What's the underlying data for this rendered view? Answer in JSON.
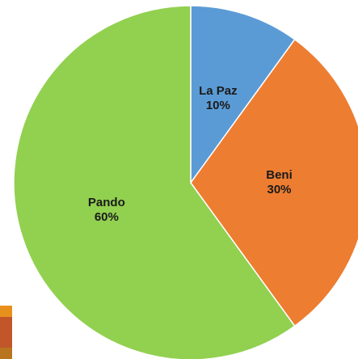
{
  "chart_data": {
    "type": "pie",
    "categories": [
      "La Paz",
      "Beni",
      "Pando"
    ],
    "values": [
      10,
      30,
      60
    ],
    "value_labels": [
      "10%",
      "30%",
      "60%"
    ],
    "colors": [
      "#5b9bd5",
      "#ed7d31",
      "#92d050"
    ]
  }
}
